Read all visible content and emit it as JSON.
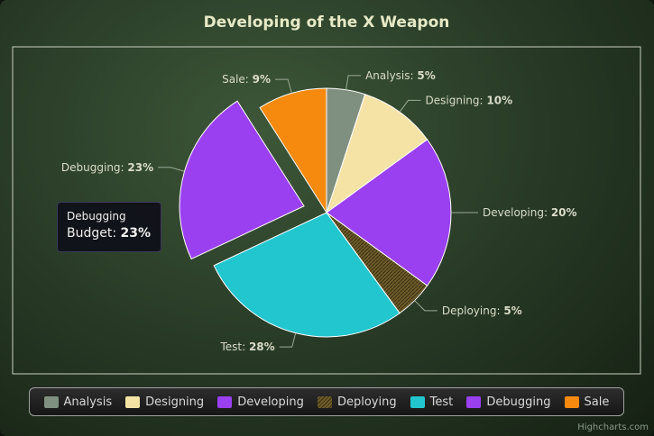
{
  "chart_data": {
    "type": "pie",
    "title": "Developing of the X Weapon",
    "categories": [
      "Analysis",
      "Designing",
      "Developing",
      "Deploying",
      "Test",
      "Debugging",
      "Sale"
    ],
    "values": [
      5,
      10,
      20,
      5,
      28,
      23,
      9
    ],
    "value_suffix": "%",
    "sliced": "Debugging",
    "series_name": "Budget",
    "legend_position": "bottom",
    "colors": {
      "Analysis": "#7f8f80",
      "Designing": "#f5e3a6",
      "Developing": "#9a40f0",
      "Deploying": "#6e5c2a",
      "Test": "#22c6cf",
      "Debugging": "#9a40f0",
      "Sale": "#f58a0f"
    },
    "patterns": {
      "Deploying": "hatch"
    }
  },
  "tooltip": {
    "category": "Debugging",
    "series": "Budget",
    "value": "23%"
  },
  "credits": "Highcharts.com",
  "theme": {
    "title_color": "#e6e9c6",
    "label_color": "#d9dcc8",
    "connector_color": "#9aaa96",
    "plot_border": "#c8d0c0"
  }
}
